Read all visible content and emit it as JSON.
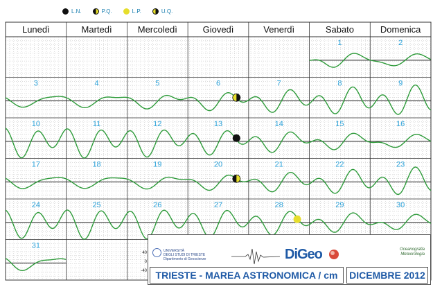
{
  "legend": [
    {
      "label": "L.N.",
      "phase": "new"
    },
    {
      "label": "P.Q.",
      "phase": "first"
    },
    {
      "label": "L.P.",
      "phase": "full"
    },
    {
      "label": "U.Q.",
      "phase": "last"
    }
  ],
  "colors": {
    "tide_curve": "#2e9b3a",
    "day_number": "#29a0d8",
    "grid_dot": "#b8b8b8",
    "grid_line": "#333333",
    "full_moon": "#e6de2c",
    "title_text": "#1f5aa6"
  },
  "weekdays": [
    "Lunedì",
    "Martedì",
    "Mercoledì",
    "Giovedì",
    "Venerdì",
    "Sabato",
    "Domenica"
  ],
  "weeks": [
    [
      "",
      "",
      "",
      "",
      "",
      "1",
      "2"
    ],
    [
      "3",
      "4",
      "5",
      "6",
      "7",
      "8",
      "9"
    ],
    [
      "10",
      "11",
      "12",
      "13",
      "14",
      "15",
      "16"
    ],
    [
      "17",
      "18",
      "19",
      "20",
      "21",
      "22",
      "23"
    ],
    [
      "24",
      "25",
      "26",
      "27",
      "28",
      "29",
      "30"
    ],
    [
      "31",
      "",
      "",
      "",
      "",
      "",
      ""
    ]
  ],
  "moon_phases": [
    {
      "day": 6,
      "phase": "last"
    },
    {
      "day": 13,
      "phase": "new"
    },
    {
      "day": 20,
      "phase": "first"
    },
    {
      "day": 28,
      "phase": "full"
    }
  ],
  "chart_data": {
    "type": "line",
    "unit": "cm",
    "ylim": [
      -40,
      40
    ],
    "scale_ticks": [
      "40",
      "0",
      "-40"
    ],
    "days": [
      1,
      31
    ],
    "description_series": "astronomical tide per day"
  },
  "footer": {
    "university": [
      "UNIVERSITÀ",
      "DEGLI STUDI DI TRIESTE",
      "Dipartimento di Geoscienze"
    ],
    "logo_main": "DiGeo",
    "logo_side": [
      "Oceanografia",
      "Meteorologia"
    ],
    "title": "TRIESTE - MAREA ASTRONOMICA / cm",
    "month": "DICEMBRE 2012"
  }
}
